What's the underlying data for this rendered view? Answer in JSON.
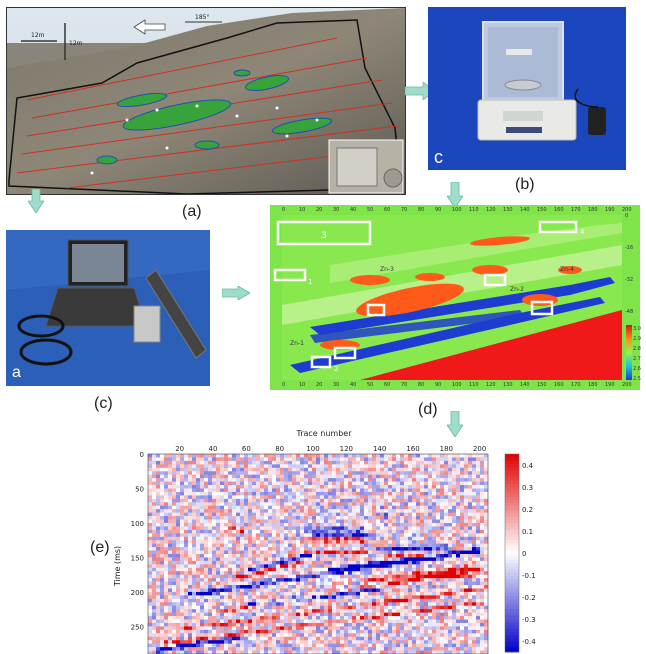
{
  "labels": {
    "a": "(a)",
    "b": "(b)",
    "c": "(c)",
    "d": "(d)",
    "e": "(e)"
  },
  "photo_a": {
    "scale_h": "12m",
    "scale_v": "12m",
    "azimuth": "185°"
  },
  "photo_b": {
    "corner_letter": "c"
  },
  "photo_c": {
    "corner_letter": "a"
  },
  "model_d": {
    "boxes": [
      "3",
      "4",
      "1",
      "2"
    ],
    "top_ticks": [
      "0",
      "10",
      "20",
      "30",
      "40",
      "50",
      "60",
      "70",
      "80",
      "90",
      "100",
      "110",
      "120",
      "130",
      "140",
      "150",
      "160",
      "170",
      "180",
      "190",
      "200"
    ],
    "bottom_ticks": [
      "0",
      "10",
      "20",
      "30",
      "40",
      "50",
      "60",
      "70",
      "80",
      "90",
      "100",
      "110",
      "120",
      "130",
      "140",
      "150",
      "160",
      "170",
      "180",
      "190",
      "200"
    ],
    "right_ticks": [
      "0",
      "-16",
      "-32",
      "-48"
    ],
    "colorbar_ticks": [
      "2.5",
      "2.6",
      "2.7",
      "2.8",
      "2.9",
      "3.0"
    ],
    "unit_labels": [
      "Zn-4",
      "Zn-3",
      "Zn-2",
      "Zn-1"
    ]
  },
  "chart_data": {
    "type": "heatmap",
    "title": "Trace number",
    "xlabel": "Trace number",
    "ylabel": "Time (ms)",
    "x_ticks": [
      20,
      40,
      60,
      80,
      100,
      120,
      140,
      160,
      180,
      200
    ],
    "y_ticks": [
      0,
      50,
      100,
      150,
      200,
      250
    ],
    "xlim": [
      1,
      205
    ],
    "ylim": [
      0,
      290
    ],
    "colorbar_ticks": [
      0.4,
      0.3,
      0.2,
      0.1,
      0,
      -0.1,
      -0.2,
      -0.3,
      -0.4
    ],
    "colorbar_range": [
      -0.45,
      0.45
    ],
    "colormap": [
      "#0000c8",
      "#ffffff",
      "#e00000"
    ]
  }
}
